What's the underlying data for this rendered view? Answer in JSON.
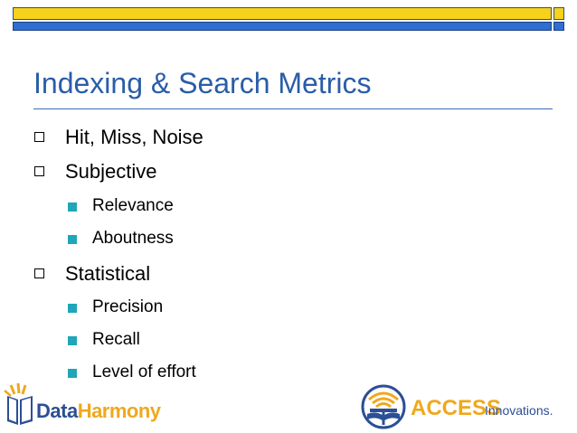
{
  "slide": {
    "title": "Indexing & Search Metrics",
    "bullets": [
      {
        "text": "Hit, Miss, Noise",
        "children": []
      },
      {
        "text": "Subjective",
        "children": [
          "Relevance",
          "Aboutness"
        ]
      },
      {
        "text": "Statistical",
        "children": [
          "Precision",
          "Recall",
          "Level of effort"
        ]
      }
    ]
  },
  "logos": {
    "left": {
      "part1": "Data",
      "part2": "Harmony",
      "icon": "data-harmony-book-icon"
    },
    "right": {
      "part1": "ACCESS",
      "part2": "Innovations.",
      "icon": "access-innovations-globe-icon"
    }
  },
  "colors": {
    "title": "#2a5da8",
    "band_yellow": "#f7d11a",
    "band_blue": "#2f6fcf",
    "sub_bullet": "#1fa6b8",
    "logo_orange": "#f0a81c",
    "logo_blue": "#2c4f95"
  }
}
